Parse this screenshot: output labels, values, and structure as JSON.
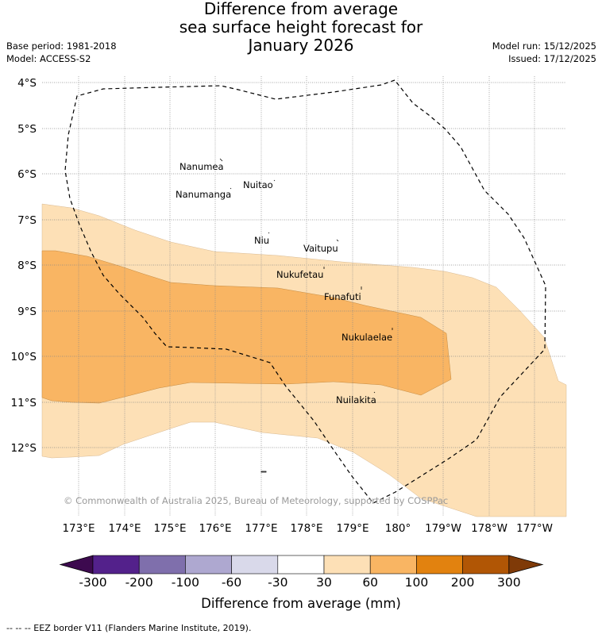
{
  "title": {
    "line1": "Difference from average",
    "line2": "sea surface height forecast for",
    "line3": "January 2026"
  },
  "meta_left": {
    "base_period": "Base period: 1981-2018",
    "model": "Model: ACCESS-S2"
  },
  "meta_right": {
    "model_run": "Model run: 15/12/2025",
    "issued": "Issued: 17/12/2025"
  },
  "map": {
    "lat_labels": [
      "4°S",
      "5°S",
      "6°S",
      "7°S",
      "8°S",
      "9°S",
      "10°S",
      "11°S",
      "12°S"
    ],
    "lon_labels": [
      "173°E",
      "174°E",
      "175°E",
      "176°E",
      "177°E",
      "178°E",
      "179°E",
      "180°",
      "179°W",
      "178°W",
      "177°W"
    ],
    "places": [
      {
        "name": "Nanumea"
      },
      {
        "name": "Nanumanga"
      },
      {
        "name": "Nuitao"
      },
      {
        "name": "Niu"
      },
      {
        "name": "Vaitupu"
      },
      {
        "name": "Nukufetau"
      },
      {
        "name": "Funafuti"
      },
      {
        "name": "Nukulaelae"
      },
      {
        "name": "Nuilakita"
      }
    ],
    "copyright": "© Commonwealth of Australia 2025, Bureau of Meteorology, supported by COSPPac",
    "colors": {
      "anomaly_30_60": "#fde0b6",
      "anomaly_60_100": "#f9b563",
      "eez_border": "#000000",
      "grid": "#888888"
    }
  },
  "colorbar": {
    "tick_labels": [
      "-300",
      "-200",
      "-100",
      "-60",
      "-30",
      "30",
      "60",
      "100",
      "200",
      "300"
    ],
    "colors": [
      "#3d0a4f",
      "#53218b",
      "#7f6fac",
      "#aea8d0",
      "#d9d9ea",
      "#ffffff",
      "#fde0b6",
      "#f9b563",
      "#e2820f",
      "#b15605",
      "#7f3a08"
    ],
    "title": "Difference from average (mm)"
  },
  "footnote": "--  --  -- EEZ border V11 (Flanders Marine Institute, 2019)."
}
